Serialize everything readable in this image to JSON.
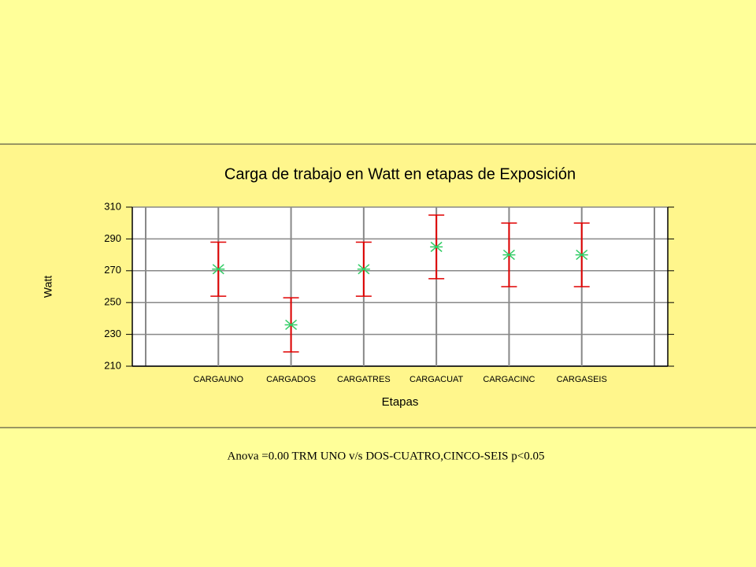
{
  "chart_data": {
    "type": "errorbar",
    "title": "Carga de trabajo en Watt en etapas de Exposición",
    "xlabel": "Etapas",
    "ylabel": "Watt",
    "categories": [
      "CARGAUNO",
      "CARGADOS",
      "CARGATRES",
      "CARGACUAT",
      "CARGACINC",
      "CARGASEIS"
    ],
    "values": [
      271,
      236,
      271,
      285,
      280,
      280
    ],
    "errors": [
      17,
      17,
      17,
      20,
      20,
      20
    ],
    "color": "#33cc66",
    "error_color": "#e00000",
    "ylim": [
      210,
      310
    ],
    "yticks": [
      210,
      230,
      250,
      270,
      290,
      310
    ],
    "grid": true
  },
  "note": "Anova =0.00 TRM UNO v/s DOS-CUATRO,CINCO-SEIS p<0.05"
}
